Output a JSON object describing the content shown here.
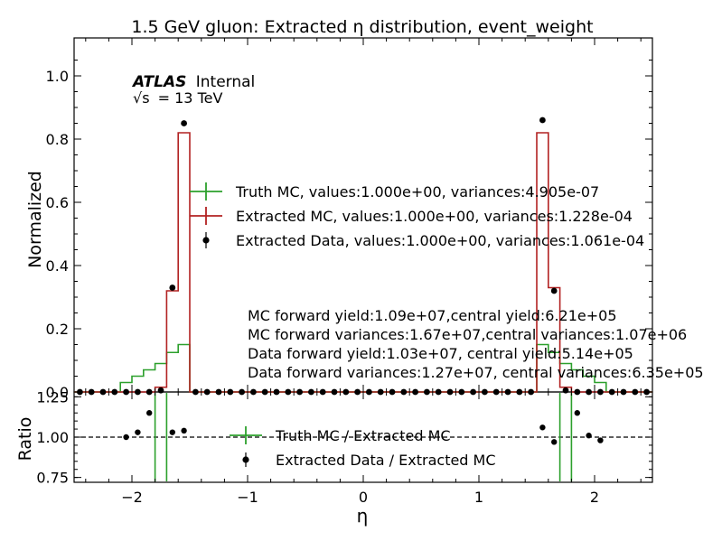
{
  "chart_data": {
    "type": "step",
    "title": "1.5 GeV gluon: Extracted η distribution, event_weight",
    "xlabel": "η",
    "ylabel": "Normalized",
    "ratio_ylabel": "Ratio",
    "xlim": [
      -2.5,
      2.5
    ],
    "ylim": [
      0,
      1.12
    ],
    "ratio_ylim": [
      0.72,
      1.28
    ],
    "x_ticks": [
      -2,
      -1,
      0,
      1,
      2
    ],
    "x_tick_labels": [
      "−2",
      "−1",
      "0",
      "1",
      "2"
    ],
    "y_ticks": [
      0.0,
      0.2,
      0.4,
      0.6,
      0.8,
      1.0
    ],
    "y_tick_labels": [
      "0.0",
      "0.2",
      "0.4",
      "0.6",
      "0.8",
      "1.0"
    ],
    "ratio_y_ticks": [
      0.75,
      1.0,
      1.25
    ],
    "ratio_y_tick_labels": [
      "0.75",
      "1.00",
      "1.25"
    ],
    "ratio_reference_line": 1.0,
    "bin_edges": [
      -2.5,
      -2.4,
      -2.3,
      -2.2,
      -2.1,
      -2.0,
      -1.9,
      -1.8,
      -1.7,
      -1.6,
      -1.5,
      -1.4,
      -1.3,
      -1.2,
      -1.1,
      -1.0,
      -0.9,
      -0.8,
      -0.7,
      -0.6,
      -0.5,
      -0.4,
      -0.3,
      -0.2,
      -0.1,
      0.0,
      0.1,
      0.2,
      0.3,
      0.4,
      0.5,
      0.6,
      0.7,
      0.8,
      0.9,
      1.0,
      1.1,
      1.2,
      1.3,
      1.4,
      1.5,
      1.6,
      1.7,
      1.8,
      1.9,
      2.0,
      2.1,
      2.2,
      2.3,
      2.4,
      2.5
    ],
    "series": [
      {
        "name": "Truth MC, values:1.000e+00, variances:4.905e-07",
        "color": "#2ca02c",
        "values": [
          0,
          0,
          0,
          0,
          0.03,
          0.05,
          0.07,
          0.09,
          0.125,
          0.15,
          0,
          0,
          0,
          0,
          0,
          0,
          0,
          0,
          0,
          0,
          0,
          0,
          0,
          0,
          0,
          0,
          0,
          0,
          0,
          0,
          0,
          0,
          0,
          0,
          0,
          0,
          0,
          0,
          0,
          0,
          0.15,
          0.125,
          0.09,
          0.07,
          0.05,
          0.03,
          0,
          0,
          0,
          0
        ]
      },
      {
        "name": "Extracted MC, values:1.000e+00, variances:1.228e-04",
        "color": "#b22222",
        "values": [
          0,
          0,
          0,
          0,
          0,
          0,
          0,
          0.015,
          0.32,
          0.82,
          0,
          0,
          0,
          0,
          0,
          0,
          0,
          0,
          0,
          0,
          0,
          0,
          0,
          0,
          0,
          0,
          0,
          0,
          0,
          0,
          0,
          0,
          0,
          0,
          0,
          0,
          0,
          0,
          0,
          0,
          0.82,
          0.33,
          0.015,
          0,
          0,
          0,
          0,
          0,
          0,
          0
        ]
      },
      {
        "name": "Extracted Data, values:1.000e+00, variances:1.061e-04",
        "color": "#000000",
        "values": [
          0,
          0,
          0,
          0,
          0,
          0,
          0,
          0.005,
          0.33,
          0.85,
          0,
          0,
          0,
          0,
          0,
          0,
          0,
          0,
          0,
          0,
          0,
          0,
          0,
          0,
          0,
          0,
          0,
          0,
          0,
          0,
          0,
          0,
          0,
          0,
          0,
          0,
          0,
          0,
          0,
          0,
          0.86,
          0.32,
          0.005,
          0,
          0,
          0,
          0,
          0,
          0,
          0
        ]
      }
    ],
    "ratio_series": [
      {
        "name": "Truth MC / Extracted MC",
        "color": "#2ca02c",
        "vertical_lines_x": [
          -1.8,
          -1.7,
          1.7,
          1.8
        ]
      },
      {
        "name": "Extracted Data / Extracted MC",
        "color": "#000000",
        "points": [
          [
            -2.05,
            1.0
          ],
          [
            -1.95,
            1.03
          ],
          [
            -1.85,
            1.15
          ],
          [
            -1.65,
            1.03
          ],
          [
            -1.55,
            1.04
          ],
          [
            1.55,
            1.06
          ],
          [
            1.65,
            0.97
          ],
          [
            1.85,
            1.15
          ],
          [
            1.95,
            1.01
          ],
          [
            2.05,
            0.98
          ]
        ]
      }
    ],
    "legend_placement": "center-right",
    "atlas_label": "ATLAS",
    "atlas_sublabel": "Internal",
    "energy_label_prefix": "√s",
    "energy_label_value": "= 13 TeV",
    "annotations": [
      "MC forward yield:1.09e+07,central yield:6.21e+05",
      "MC forward variances:1.67e+07,central variances:1.07e+06",
      "Data forward yield:1.03e+07, central yield:5.14e+05",
      "Data forward variances:1.27e+07, central variances:6.35e+05"
    ],
    "grid": false
  }
}
